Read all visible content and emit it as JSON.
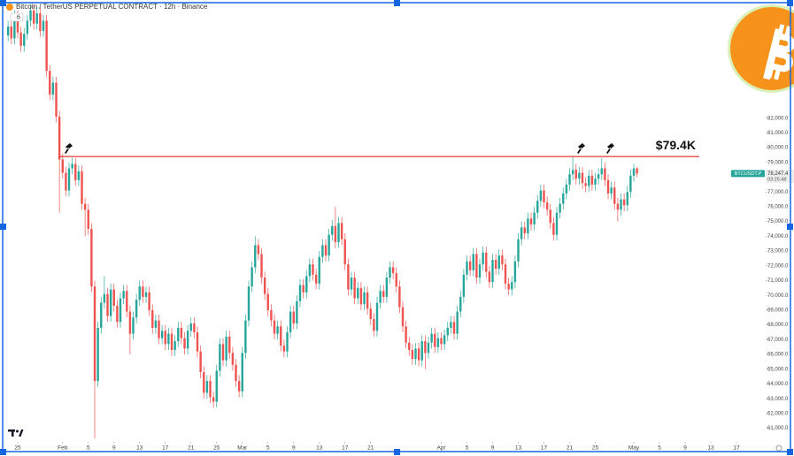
{
  "chart_data": {
    "type": "candlestick",
    "title": "Bitcoin / TetherUS PERPETUAL CONTRACT · 12h · Binance",
    "badge": "6",
    "up_color": "#26a69a",
    "down_color": "#ef5350",
    "xlim": [
      -2.76,
      116.55
    ],
    "ylim": [
      60200,
      90000
    ],
    "xticks": [
      {
        "value": 0,
        "label": "25"
      },
      {
        "value": 7,
        "label": "Feb"
      },
      {
        "value": 11,
        "label": "5"
      },
      {
        "value": 15,
        "label": "9"
      },
      {
        "value": 19,
        "label": "13"
      },
      {
        "value": 23,
        "label": "17"
      },
      {
        "value": 27,
        "label": "21"
      },
      {
        "value": 31,
        "label": "25"
      },
      {
        "value": 35,
        "label": "Mar"
      },
      {
        "value": 39,
        "label": "5"
      },
      {
        "value": 43,
        "label": "9"
      },
      {
        "value": 47,
        "label": "13"
      },
      {
        "value": 51,
        "label": "17"
      },
      {
        "value": 55,
        "label": "21"
      },
      {
        "value": 66,
        "label": "Apr"
      },
      {
        "value": 70,
        "label": "5"
      },
      {
        "value": 74,
        "label": "9"
      },
      {
        "value": 78,
        "label": "13"
      },
      {
        "value": 82,
        "label": "17"
      },
      {
        "value": 86,
        "label": "21"
      },
      {
        "value": 90,
        "label": "25"
      },
      {
        "value": 96,
        "label": "May"
      },
      {
        "value": 100,
        "label": "5"
      },
      {
        "value": 104,
        "label": "9"
      },
      {
        "value": 108,
        "label": "13"
      },
      {
        "value": 112,
        "label": "17"
      }
    ],
    "yticks": [
      {
        "value": 61000,
        "label": "61,000.0"
      },
      {
        "value": 62000,
        "label": "62,000.0"
      },
      {
        "value": 63000,
        "label": "63,000.0"
      },
      {
        "value": 64000,
        "label": "64,000.0"
      },
      {
        "value": 65000,
        "label": "65,000.0"
      },
      {
        "value": 66000,
        "label": "66,000.0"
      },
      {
        "value": 67000,
        "label": "67,000.0"
      },
      {
        "value": 68000,
        "label": "68,000.0"
      },
      {
        "value": 69000,
        "label": "69,000.0"
      },
      {
        "value": 70000,
        "label": "70,000.0"
      },
      {
        "value": 71000,
        "label": "71,000.0"
      },
      {
        "value": 72000,
        "label": "72,000.0"
      },
      {
        "value": 73000,
        "label": "73,000.0"
      },
      {
        "value": 74000,
        "label": "74,000.0"
      },
      {
        "value": 75000,
        "label": "75,000.0"
      },
      {
        "value": 76000,
        "label": "76,000.0"
      },
      {
        "value": 77000,
        "label": "77,000.0"
      },
      {
        "value": 78000,
        "label": "78,000.0"
      },
      {
        "value": 79000,
        "label": "79,000.0"
      },
      {
        "value": 80000,
        "label": "80,000.0"
      },
      {
        "value": 81000,
        "label": "81,000.0"
      },
      {
        "value": 82000,
        "label": "82,000.0"
      }
    ],
    "level": {
      "value": 79400,
      "label": "$79.4K",
      "from": 6.5,
      "to": 106.2,
      "color": "#e53935"
    },
    "price_tag": {
      "symbol": "BTCUSDT.P",
      "price": {
        "value": 78247.4,
        "label": "78,247.4"
      },
      "countdown": "03:25:48"
    },
    "candles": {
      "x": [
        -1.5,
        -1,
        -0.5,
        0,
        0.5,
        1,
        1.5,
        2,
        2.5,
        3,
        3.5,
        4,
        4.5,
        5,
        5.5,
        6,
        6.5,
        7,
        7.5,
        8,
        8.5,
        9,
        9.5,
        10,
        10.5,
        11,
        11.5,
        12,
        12.5,
        13,
        13.5,
        14,
        14.5,
        15,
        15.5,
        16,
        16.5,
        17,
        17.5,
        18,
        18.5,
        19,
        19.5,
        20,
        20.5,
        21,
        21.5,
        22,
        22.5,
        23,
        23.5,
        24,
        24.5,
        25,
        25.5,
        26,
        26.5,
        27,
        27.5,
        28,
        28.5,
        29,
        29.5,
        30,
        30.5,
        31,
        31.5,
        32,
        32.5,
        33,
        33.5,
        34,
        34.5,
        35,
        35.5,
        36,
        36.5,
        37,
        37.5,
        38,
        38.5,
        39,
        39.5,
        40,
        40.5,
        41,
        41.5,
        42,
        42.5,
        43,
        43.5,
        44,
        44.5,
        45,
        45.5,
        46,
        46.5,
        47,
        47.5,
        48,
        48.5,
        49,
        49.5,
        50,
        50.5,
        51,
        51.5,
        52,
        52.5,
        53,
        53.5,
        54,
        54.5,
        55,
        55.5,
        56,
        56.5,
        57,
        57.5,
        58,
        58.5,
        59,
        59.5,
        60,
        60.5,
        61,
        61.5,
        62,
        62.5,
        63,
        63.5,
        64,
        64.5,
        65,
        65.5,
        66,
        66.5,
        67,
        67.5,
        68,
        68.5,
        69,
        69.5,
        70,
        70.5,
        71,
        71.5,
        72,
        72.5,
        73,
        73.5,
        74,
        74.5,
        75,
        75.5,
        76,
        76.5,
        77,
        77.5,
        78,
        78.5,
        79,
        79.5,
        80,
        80.5,
        81,
        81.5,
        82,
        82.5,
        83,
        83.5,
        84,
        84.5,
        85,
        85.5,
        86,
        86.5,
        87,
        87.5,
        88,
        88.5,
        89,
        89.5,
        90,
        90.5,
        91,
        91.5,
        92,
        92.5,
        93,
        93.5,
        94,
        94.5,
        95,
        95.5,
        96,
        96.5
      ],
      "open": [
        87600,
        88200,
        87400,
        88900,
        87800,
        86900,
        87700,
        88600,
        89300,
        88400,
        89100,
        87900,
        88600,
        85200,
        83600,
        84400,
        82100,
        79200,
        78300,
        77100,
        78600,
        78900,
        77800,
        78400,
        76200,
        75800,
        74500,
        70600,
        64200,
        67800,
        69500,
        70100,
        68600,
        70400,
        69300,
        68200,
        69800,
        70300,
        68900,
        67400,
        68500,
        69700,
        70600,
        69900,
        70200,
        69000,
        67800,
        68300,
        67100,
        67600,
        66700,
        67400,
        66300,
        66900,
        67800,
        67100,
        66400,
        67600,
        68100,
        67500,
        66200,
        64800,
        63400,
        64200,
        63100,
        62800,
        64900,
        66700,
        65600,
        67200,
        66100,
        65300,
        64200,
        63500,
        66100,
        68300,
        70600,
        71900,
        73400,
        72800,
        71200,
        70100,
        69000,
        68300,
        67400,
        67900,
        66600,
        66200,
        67500,
        68900,
        68100,
        69600,
        70700,
        70200,
        71300,
        72100,
        71400,
        70800,
        72600,
        73400,
        72700,
        74100,
        74700,
        73600,
        74900,
        73800,
        72100,
        70400,
        71200,
        69800,
        70500,
        69400,
        70200,
        69100,
        68400,
        67600,
        69500,
        70300,
        69900,
        71200,
        71900,
        71500,
        70600,
        69200,
        67900,
        66800,
        66300,
        65700,
        66400,
        65600,
        66900,
        66100,
        66800,
        67400,
        66500,
        67100,
        66700,
        67300,
        67800,
        68200,
        67400,
        68900,
        69900,
        71400,
        72300,
        71700,
        72800,
        71200,
        72100,
        72900,
        71600,
        70900,
        72400,
        71800,
        72700,
        72100,
        70800,
        70400,
        70900,
        72300,
        73800,
        74600,
        74200,
        75200,
        74800,
        75600,
        76400,
        77100,
        76300,
        75800,
        74900,
        74100,
        75600,
        76200,
        76900,
        77500,
        78200,
        78500,
        77900,
        78300,
        77600,
        77400,
        78100,
        77500,
        77900,
        78200,
        78600,
        77800,
        76900,
        77300,
        76200,
        75800,
        76500,
        76100,
        77000,
        78100,
        78600
      ],
      "high": [
        88600,
        88600,
        89300,
        89300,
        88200,
        88100,
        89000,
        89700,
        89700,
        89500,
        89500,
        89000,
        89000,
        85600,
        84800,
        84800,
        82500,
        79600,
        78700,
        79000,
        79300,
        79300,
        78800,
        78800,
        76600,
        76200,
        74900,
        71000,
        68200,
        69900,
        71300,
        70500,
        70800,
        70800,
        69700,
        70200,
        70700,
        70700,
        69300,
        68900,
        70100,
        71000,
        71000,
        70600,
        70600,
        69400,
        68700,
        68700,
        68000,
        68000,
        67800,
        67800,
        67300,
        68200,
        68200,
        67500,
        68000,
        68500,
        68500,
        67900,
        66600,
        65200,
        64600,
        64600,
        63500,
        65300,
        67100,
        67100,
        67600,
        67600,
        66500,
        65700,
        64600,
        66500,
        68700,
        71000,
        72300,
        74000,
        73800,
        73200,
        71600,
        70500,
        69400,
        68700,
        68300,
        68300,
        67000,
        67900,
        69300,
        69300,
        70000,
        71100,
        71100,
        71700,
        72500,
        72500,
        71800,
        73000,
        73800,
        73800,
        74500,
        75100,
        76000,
        75300,
        75300,
        74200,
        72500,
        71600,
        71600,
        70900,
        70900,
        70600,
        70600,
        69500,
        68800,
        69900,
        70700,
        70700,
        71600,
        72300,
        72300,
        71900,
        71000,
        69600,
        68300,
        67200,
        66700,
        66800,
        66800,
        67300,
        67300,
        67200,
        67800,
        67800,
        67500,
        67500,
        67700,
        68200,
        68600,
        68600,
        69300,
        70300,
        71800,
        72700,
        72700,
        73200,
        73200,
        72500,
        73300,
        73300,
        72000,
        72800,
        72800,
        73100,
        73100,
        72500,
        71200,
        71300,
        72700,
        74200,
        75000,
        75000,
        75600,
        75600,
        76000,
        76800,
        77500,
        77500,
        76700,
        76200,
        75300,
        76000,
        76600,
        77300,
        77900,
        78600,
        79400,
        78900,
        78700,
        78700,
        78000,
        78500,
        78500,
        78300,
        78600,
        79300,
        79000,
        78200,
        77700,
        77700,
        76600,
        76900,
        76900,
        77400,
        78500,
        78900,
        78700
      ],
      "low": [
        87200,
        87000,
        87000,
        87400,
        86500,
        86500,
        87300,
        88200,
        88000,
        88000,
        87500,
        87500,
        84800,
        83200,
        83200,
        81700,
        75600,
        77900,
        76700,
        76700,
        78200,
        77400,
        77400,
        75800,
        74000,
        74100,
        70200,
        60300,
        63800,
        67400,
        69100,
        68200,
        68200,
        68900,
        67800,
        67800,
        69400,
        68500,
        66000,
        67000,
        68100,
        69300,
        69500,
        69500,
        68600,
        67400,
        67400,
        66700,
        66700,
        66300,
        66300,
        65900,
        65900,
        66500,
        66700,
        66000,
        66000,
        67200,
        67100,
        65800,
        64400,
        63000,
        63000,
        62700,
        62400,
        62400,
        64500,
        65200,
        65200,
        65700,
        64900,
        63800,
        63100,
        63100,
        65700,
        67900,
        70200,
        71500,
        72400,
        70800,
        69700,
        68600,
        67900,
        67000,
        67000,
        66200,
        65800,
        65800,
        67100,
        67700,
        67700,
        69200,
        69800,
        69800,
        70900,
        71000,
        70400,
        70400,
        72200,
        72300,
        72300,
        73700,
        73200,
        73200,
        73400,
        71700,
        70000,
        70000,
        69400,
        69400,
        69000,
        69000,
        68700,
        68000,
        67200,
        67200,
        69100,
        69500,
        69500,
        70800,
        71100,
        70200,
        68800,
        67500,
        66400,
        65900,
        65300,
        65300,
        65200,
        65200,
        65000,
        65700,
        66400,
        66100,
        66100,
        66300,
        66300,
        66900,
        67400,
        67000,
        67000,
        68500,
        69500,
        71000,
        71300,
        71300,
        70800,
        70800,
        71700,
        71200,
        70500,
        70500,
        71400,
        71400,
        71700,
        70400,
        70000,
        70000,
        70500,
        71900,
        73400,
        73800,
        73800,
        74400,
        74400,
        75200,
        76000,
        75900,
        75400,
        74500,
        73700,
        73700,
        75200,
        75800,
        76500,
        77100,
        77800,
        77500,
        77500,
        77200,
        77000,
        77000,
        77100,
        77100,
        77500,
        77800,
        77400,
        76500,
        76500,
        75800,
        75000,
        75400,
        75700,
        75700,
        76600,
        77700,
        78000
      ],
      "close": [
        88200,
        87400,
        88900,
        87800,
        86900,
        87700,
        88600,
        89300,
        88400,
        89100,
        87900,
        88600,
        85200,
        83600,
        84400,
        82100,
        79200,
        78300,
        77100,
        78600,
        78900,
        77800,
        78400,
        76200,
        75800,
        74500,
        70600,
        64200,
        67800,
        69500,
        70100,
        68600,
        70400,
        69300,
        68200,
        69800,
        70300,
        68900,
        67400,
        68500,
        69700,
        70600,
        69900,
        70200,
        69000,
        67800,
        68300,
        67100,
        67600,
        66700,
        67400,
        66300,
        66900,
        67800,
        67100,
        66400,
        67600,
        68100,
        67500,
        66200,
        64800,
        63400,
        64200,
        63100,
        62800,
        64900,
        66700,
        65600,
        67200,
        66100,
        65300,
        64200,
        63500,
        66100,
        68300,
        70600,
        71900,
        73400,
        72800,
        71200,
        70100,
        69000,
        68300,
        67400,
        67900,
        66600,
        66200,
        67500,
        68900,
        68100,
        69600,
        70700,
        70200,
        71300,
        72100,
        71400,
        70800,
        72600,
        73400,
        72700,
        74100,
        74700,
        73600,
        74900,
        73800,
        72100,
        70400,
        71200,
        69800,
        70500,
        69400,
        70200,
        69100,
        68400,
        67600,
        69500,
        70300,
        69900,
        71200,
        71900,
        71500,
        70600,
        69200,
        67900,
        66800,
        66300,
        65700,
        66400,
        65600,
        66900,
        66100,
        66800,
        67400,
        66500,
        67100,
        66700,
        67300,
        67800,
        68200,
        67400,
        68900,
        69900,
        71400,
        72300,
        71700,
        72800,
        71200,
        72100,
        72900,
        71600,
        70900,
        72400,
        71800,
        72700,
        72100,
        70800,
        70400,
        70900,
        72300,
        73800,
        74600,
        74200,
        75200,
        74800,
        75600,
        76400,
        77100,
        76300,
        75800,
        74900,
        74100,
        75600,
        76200,
        76900,
        77500,
        78200,
        78500,
        77900,
        78300,
        77600,
        77400,
        78100,
        77500,
        77900,
        78200,
        78600,
        77800,
        76900,
        77300,
        76200,
        75800,
        76500,
        76100,
        77000,
        78100,
        78600,
        78247.4
      ]
    }
  }
}
